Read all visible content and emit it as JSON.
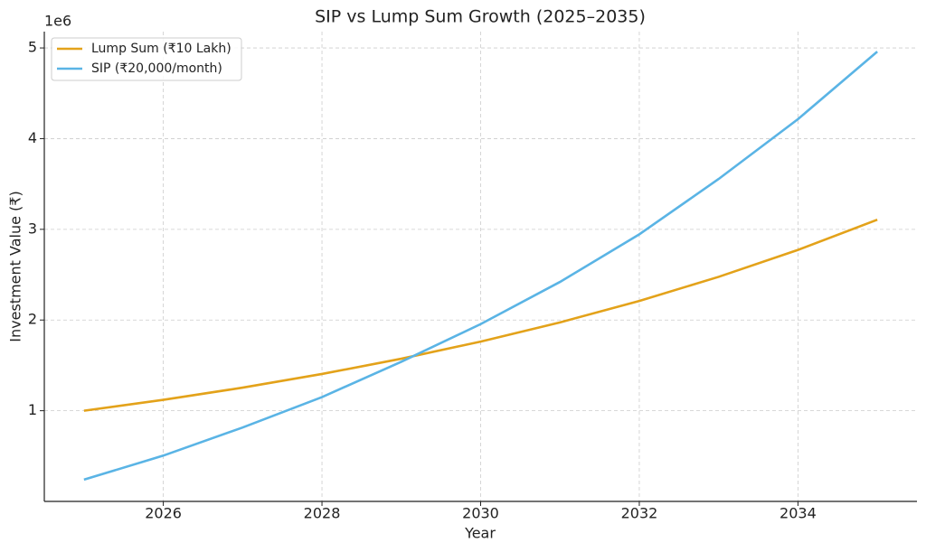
{
  "chart_data": {
    "type": "line",
    "title": "SIP vs Lump Sum Growth (2025–2035)",
    "xlabel": "Year",
    "ylabel": "Investment Value (₹)",
    "y_offset_label": "1e6",
    "x": [
      2025,
      2026,
      2027,
      2028,
      2029,
      2030,
      2031,
      2032,
      2033,
      2034,
      2035
    ],
    "series": [
      {
        "name": "Lump Sum (₹10 Lakh)",
        "color": "#e3a21a",
        "values": [
          1000000,
          1120000,
          1254400,
          1404928,
          1573519,
          1762342,
          1973823,
          2210681,
          2475963,
          2773079,
          3105848
        ]
      },
      {
        "name": "SIP (₹20,000/month)",
        "color": "#5ab4e5",
        "values": [
          240000,
          505000,
          815000,
          1150000,
          1540000,
          1955000,
          2420000,
          2945000,
          3555000,
          4215000,
          4960000
        ]
      }
    ],
    "xlim": [
      2024.5,
      2035.5
    ],
    "xticks": [
      2026,
      2028,
      2030,
      2032,
      2034
    ],
    "ylim": [
      0,
      5180000
    ],
    "yticks": [
      {
        "value": 1000000,
        "label": "1"
      },
      {
        "value": 2000000,
        "label": "2"
      },
      {
        "value": 3000000,
        "label": "3"
      },
      {
        "value": 4000000,
        "label": "4"
      },
      {
        "value": 5000000,
        "label": "5"
      }
    ],
    "grid": true,
    "legend": "upper left"
  }
}
